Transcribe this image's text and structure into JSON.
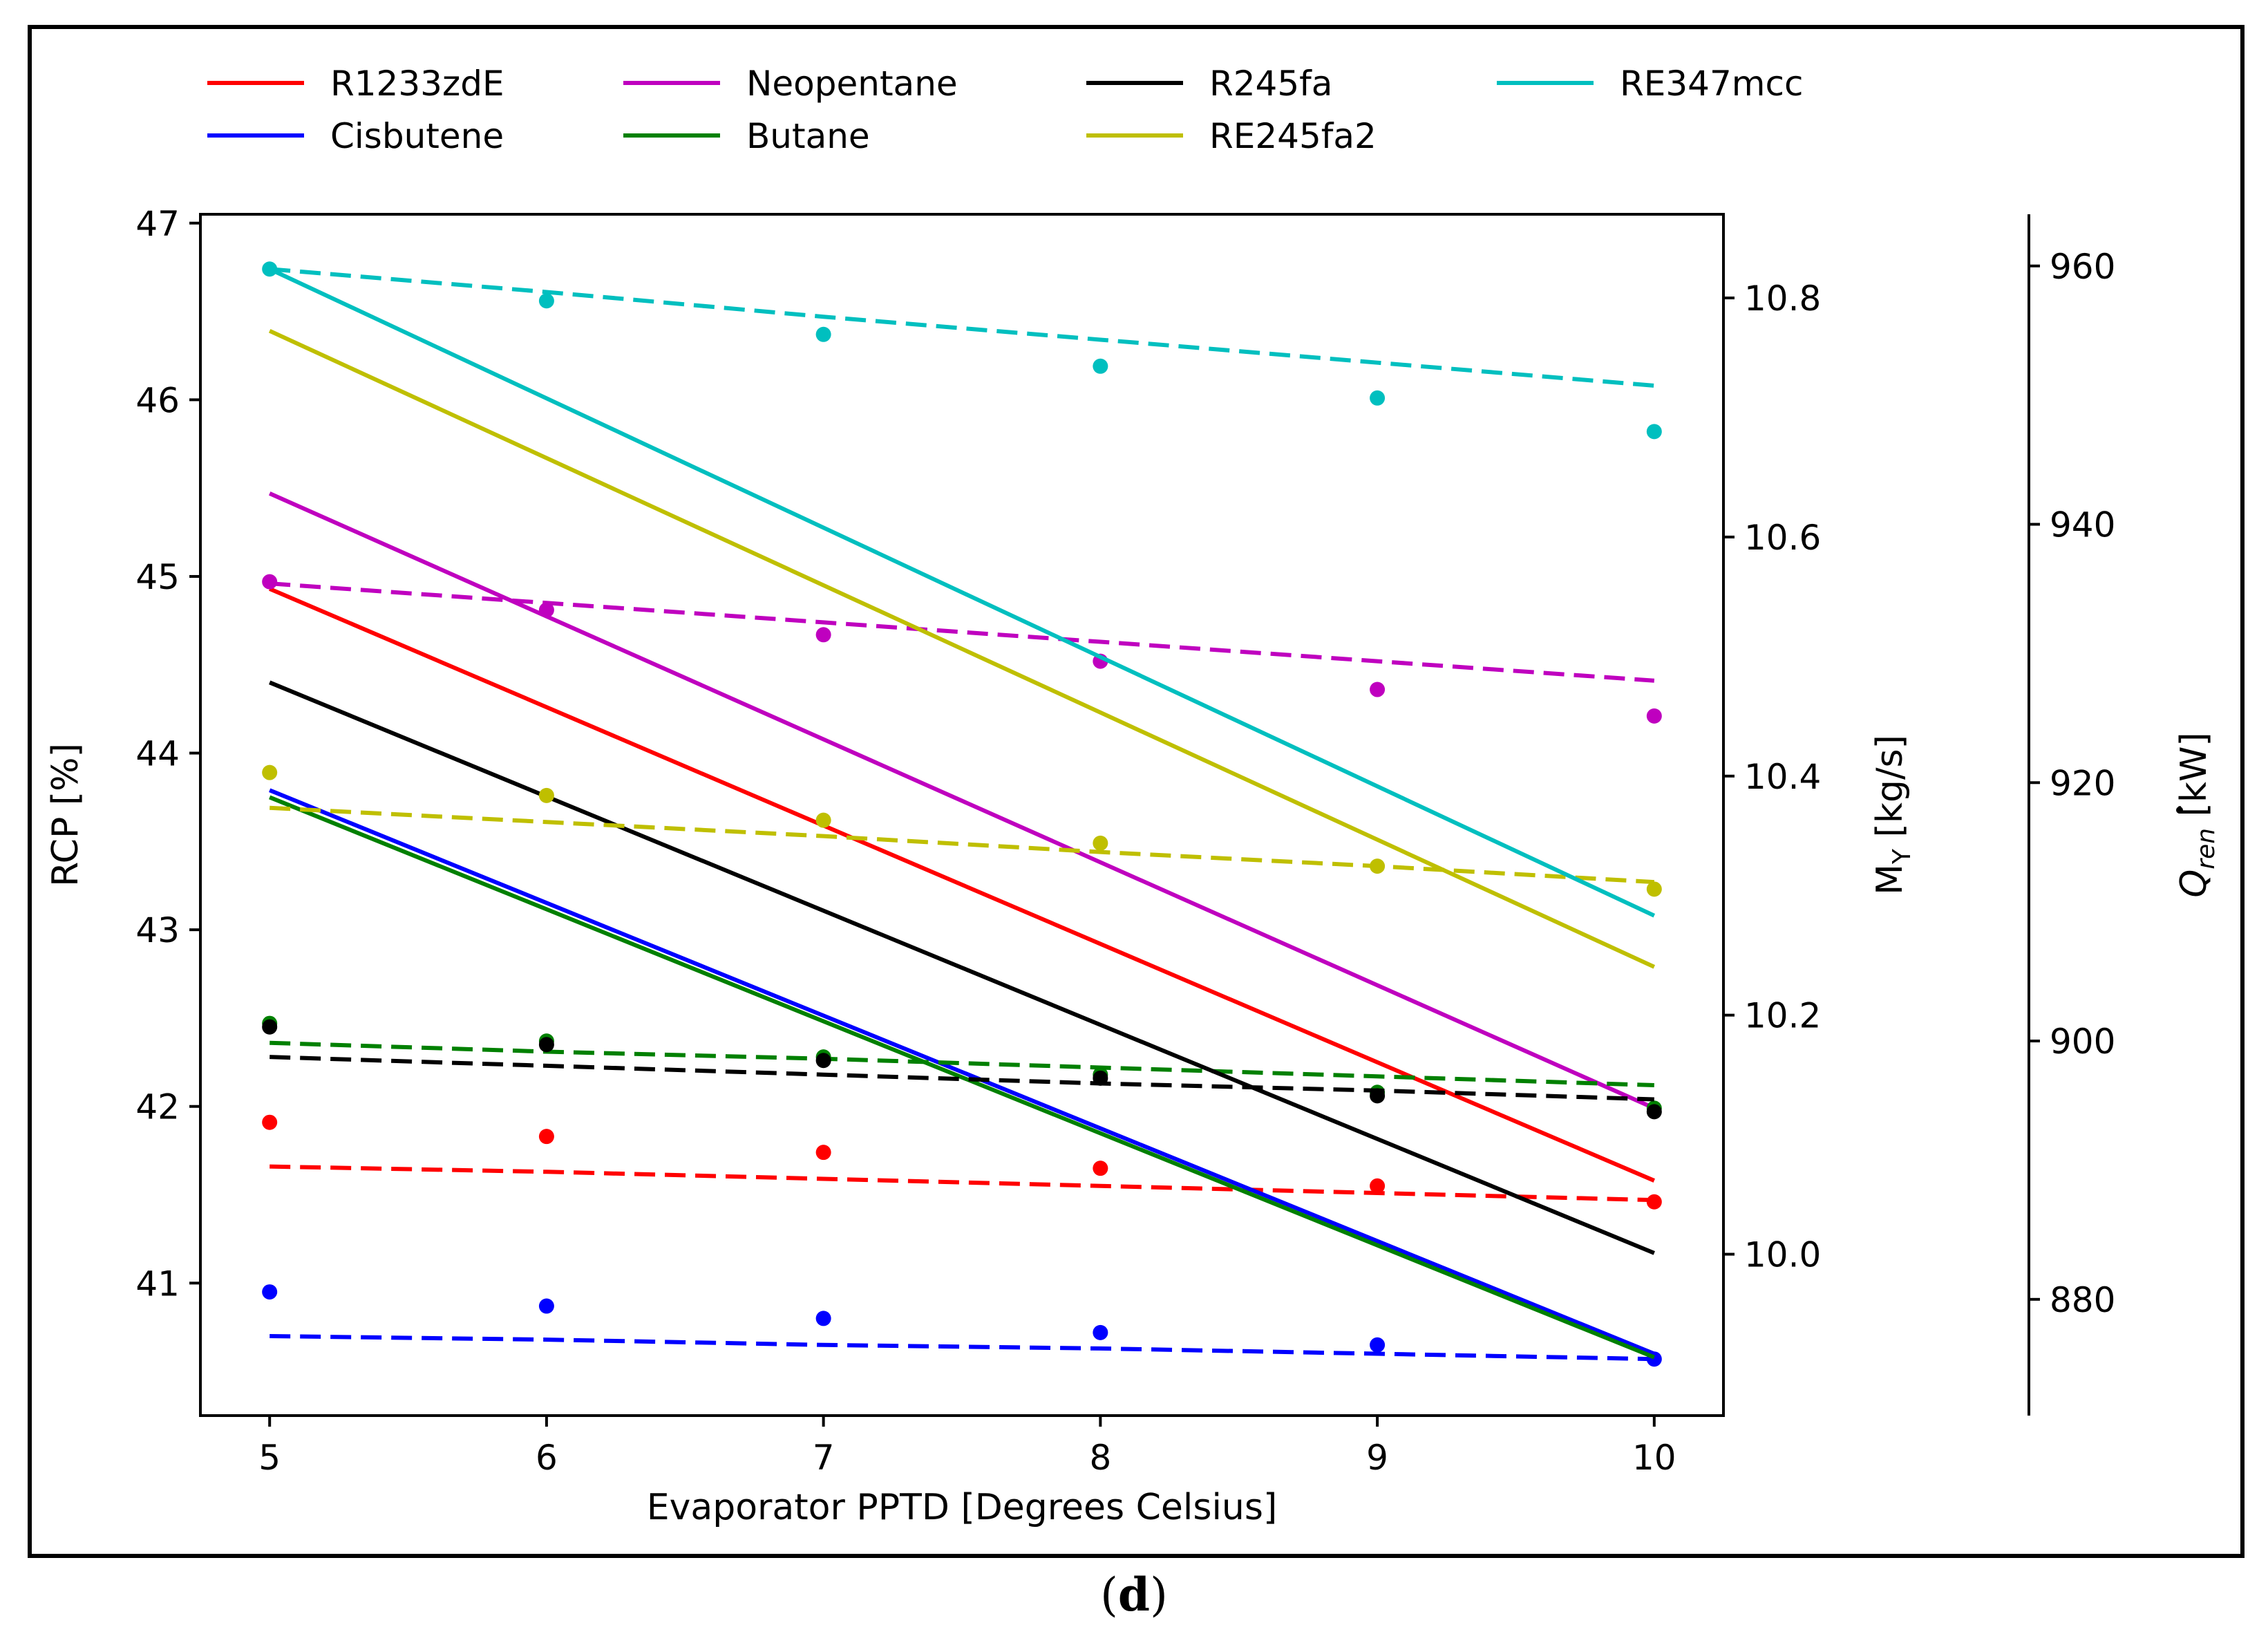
{
  "figure_label_open": "(",
  "figure_label": "d",
  "figure_label_close": ")",
  "chart_data": {
    "type": "line",
    "title": "",
    "xlabel": "Evaporator PPTD [Degrees Celsius]",
    "ylabel": "RCP [%]",
    "ylabel2": "M",
    "ylabel2_sub": "Y",
    "ylabel2_unit": " [kg/s]",
    "ylabel3": "Q",
    "ylabel3_sub": "ren",
    "ylabel3_unit": " [kW]",
    "x_ticks": [
      5,
      6,
      7,
      8,
      9,
      10
    ],
    "y_ticks": [
      41,
      42,
      43,
      44,
      45,
      46,
      47
    ],
    "y2_ticks": [
      "10.0",
      "10.2",
      "10.4",
      "10.6",
      "10.8"
    ],
    "y3_ticks": [
      880,
      900,
      920,
      940,
      960
    ],
    "xlim": [
      4.75,
      10.25
    ],
    "ylim": [
      40.25,
      47.05
    ],
    "y2lim": [
      9.865,
      10.87
    ],
    "y3lim": [
      871,
      964
    ],
    "legend_location": "top",
    "colors": {
      "R1233zdE": "#ff0000",
      "Cisbutene": "#0000ff",
      "Neopentane": "#bf00bf",
      "Butane": "#008000",
      "R245fa": "#000000",
      "RE245fa2": "#bfbf00",
      "RE347mcc": "#00bfbf"
    },
    "legend": [
      "R1233zdE",
      "Cisbutene",
      "Neopentane",
      "Butane",
      "R245fa",
      "RE245fa2",
      "RE347mcc"
    ],
    "series": [
      {
        "name": "R1233zdE",
        "rcp": [
          44.93,
          41.58
        ],
        "m_y_dashed": [
          41.66,
          41.63,
          41.59,
          41.55,
          41.51,
          41.47
        ],
        "q_ren_points": [
          41.91,
          41.83,
          41.74,
          41.65,
          41.55,
          41.46
        ]
      },
      {
        "name": "Cisbutene",
        "rcp": [
          43.79,
          40.6
        ],
        "m_y_dashed": [
          40.7,
          40.68,
          40.65,
          40.63,
          40.6,
          40.57
        ],
        "q_ren_points": [
          40.95,
          40.87,
          40.8,
          40.72,
          40.65,
          40.57
        ]
      },
      {
        "name": "Neopentane",
        "rcp": [
          45.47,
          41.99
        ],
        "m_y_dashed": [
          44.96,
          44.85,
          44.74,
          44.63,
          44.52,
          44.41
        ],
        "q_ren_points": [
          44.97,
          44.81,
          44.67,
          44.52,
          44.36,
          44.21
        ]
      },
      {
        "name": "Butane",
        "rcp": [
          43.75,
          40.58
        ],
        "m_y_dashed": [
          42.36,
          42.31,
          42.27,
          42.22,
          42.17,
          42.12
        ],
        "q_ren_points": [
          42.47,
          42.37,
          42.28,
          42.18,
          42.08,
          41.99
        ]
      },
      {
        "name": "R245fa",
        "rcp": [
          44.4,
          41.17
        ],
        "m_y_dashed": [
          42.28,
          42.23,
          42.18,
          42.13,
          42.09,
          42.04
        ],
        "q_ren_points": [
          42.45,
          42.35,
          42.26,
          42.16,
          42.06,
          41.97
        ]
      },
      {
        "name": "RE245fa2",
        "rcp": [
          46.39,
          42.79
        ],
        "m_y_dashed": [
          43.69,
          43.61,
          43.53,
          43.44,
          43.36,
          43.27
        ],
        "q_ren_points": [
          43.89,
          43.76,
          43.62,
          43.49,
          43.36,
          43.23
        ]
      },
      {
        "name": "RE347mcc",
        "rcp": [
          46.74,
          43.08
        ],
        "m_y_dashed": [
          46.74,
          46.61,
          46.47,
          46.34,
          46.21,
          46.08
        ],
        "q_ren_points": [
          46.74,
          46.56,
          46.37,
          46.19,
          46.01,
          45.82
        ]
      }
    ]
  }
}
